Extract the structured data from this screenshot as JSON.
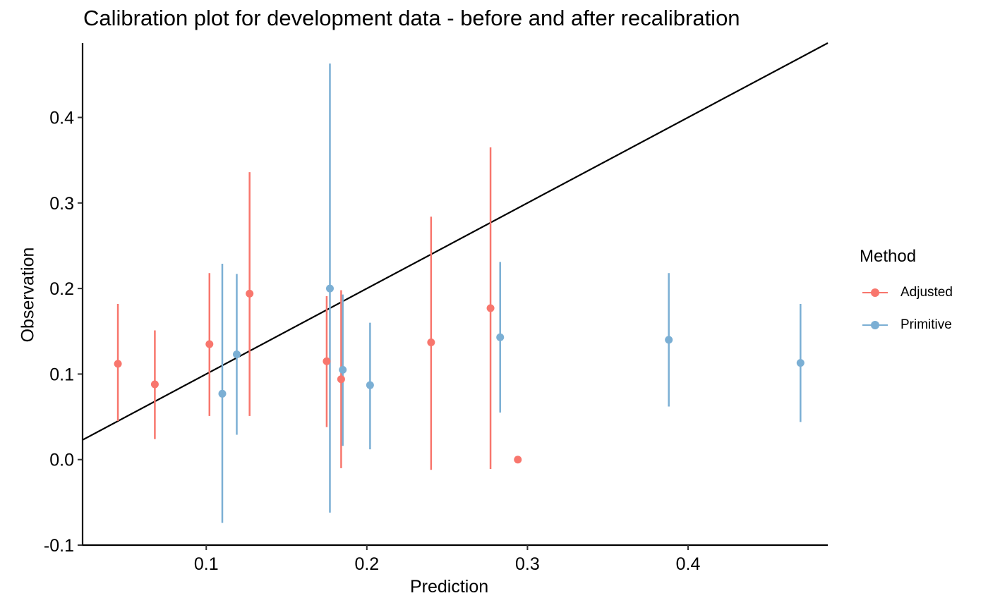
{
  "chart_data": {
    "type": "scatter",
    "title": "Calibration plot for development data - before and after recalibration",
    "xlabel": "Prediction",
    "ylabel": "Observation",
    "xlim": [
      0.023,
      0.487
    ],
    "ylim": [
      -0.1,
      0.487
    ],
    "x_ticks": [
      "0.1",
      "0.2",
      "0.3",
      "0.4"
    ],
    "x_tick_values": [
      0.1,
      0.2,
      0.3,
      0.4
    ],
    "y_ticks": [
      "-0.1",
      "0.0",
      "0.1",
      "0.2",
      "0.3",
      "0.4"
    ],
    "y_tick_values": [
      -0.1,
      0.0,
      0.1,
      0.2,
      0.3,
      0.4
    ],
    "reference_line": {
      "from": [
        0.023,
        0.023
      ],
      "to": [
        0.487,
        0.487
      ],
      "color": "#000000"
    },
    "legend": {
      "title": "Method",
      "position": "right"
    },
    "grid": false,
    "series": [
      {
        "name": "Adjusted",
        "color": "#F8766D",
        "points": [
          {
            "x": 0.045,
            "y": 0.112,
            "lo": 0.045,
            "hi": 0.182
          },
          {
            "x": 0.068,
            "y": 0.088,
            "lo": 0.024,
            "hi": 0.151
          },
          {
            "x": 0.102,
            "y": 0.135,
            "lo": 0.051,
            "hi": 0.218
          },
          {
            "x": 0.127,
            "y": 0.194,
            "lo": 0.051,
            "hi": 0.336
          },
          {
            "x": 0.175,
            "y": 0.115,
            "lo": 0.038,
            "hi": 0.191
          },
          {
            "x": 0.184,
            "y": 0.094,
            "lo": -0.01,
            "hi": 0.198
          },
          {
            "x": 0.24,
            "y": 0.137,
            "lo": -0.012,
            "hi": 0.284
          },
          {
            "x": 0.277,
            "y": 0.177,
            "lo": -0.011,
            "hi": 0.365
          },
          {
            "x": 0.294,
            "y": 0.0,
            "lo": 0.0,
            "hi": 0.0
          }
        ]
      },
      {
        "name": "Primitive",
        "color": "#7BAFD4",
        "points": [
          {
            "x": 0.11,
            "y": 0.077,
            "lo": -0.074,
            "hi": 0.229
          },
          {
            "x": 0.119,
            "y": 0.123,
            "lo": 0.029,
            "hi": 0.217
          },
          {
            "x": 0.177,
            "y": 0.2,
            "lo": -0.062,
            "hi": 0.463
          },
          {
            "x": 0.185,
            "y": 0.105,
            "lo": 0.016,
            "hi": 0.193
          },
          {
            "x": 0.202,
            "y": 0.087,
            "lo": 0.012,
            "hi": 0.16
          },
          {
            "x": 0.283,
            "y": 0.143,
            "lo": 0.055,
            "hi": 0.231
          },
          {
            "x": 0.388,
            "y": 0.14,
            "lo": 0.062,
            "hi": 0.218
          },
          {
            "x": 0.47,
            "y": 0.113,
            "lo": 0.044,
            "hi": 0.182
          }
        ]
      }
    ]
  }
}
